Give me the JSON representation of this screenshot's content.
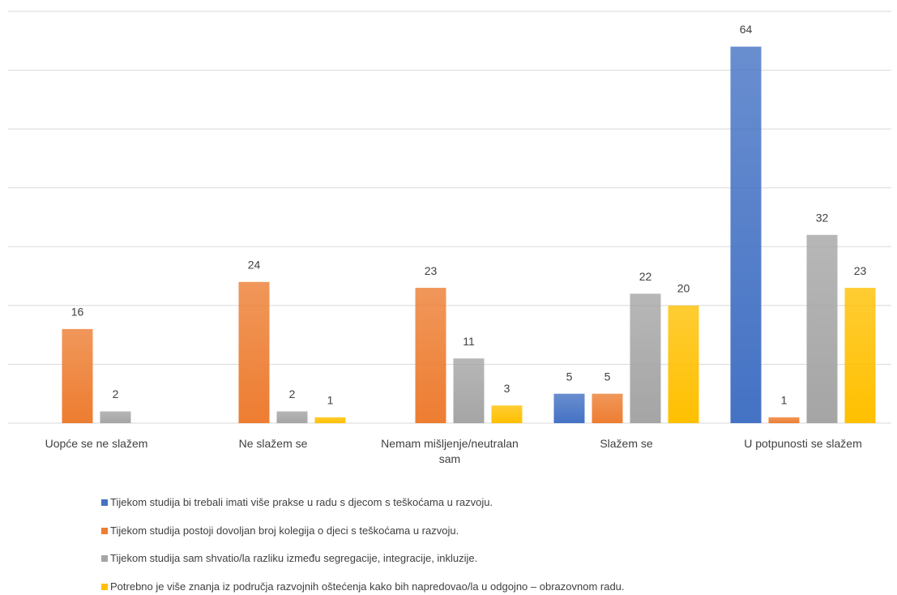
{
  "chart_data": {
    "type": "bar",
    "categories": [
      "Uopće se ne slažem",
      "Ne slažem se",
      "Nemam mišljenje/neutralan sam",
      "Slažem se",
      "U potpunosti se slažem"
    ],
    "series": [
      {
        "name": "Tijekom studija bi trebali imati više prakse u radu s djecom s teškoćama u razvoju.",
        "color": "#4472c4",
        "values": [
          null,
          null,
          null,
          5,
          64
        ]
      },
      {
        "name": "Tijekom studija postoji dovoljan broj kolegija o djeci s teškoćama u razvoju.",
        "color": "#ed7d31",
        "values": [
          16,
          24,
          23,
          5,
          1
        ]
      },
      {
        "name": "Tijekom studija sam shvatio/la razliku između segregacije, integracije, inkluzije.",
        "color": "#a5a5a5",
        "values": [
          2,
          2,
          11,
          22,
          32
        ]
      },
      {
        "name": "Potrebno je više znanja iz područja razvojnih oštećenja kako bih napredovao/la u odgojno – obrazovnom radu.",
        "color": "#ffc000",
        "values": [
          null,
          1,
          3,
          20,
          23
        ]
      }
    ],
    "ylim": [
      0,
      70
    ],
    "yticks": [
      0,
      10,
      20,
      30,
      40,
      50,
      60,
      70
    ],
    "grid": true
  }
}
